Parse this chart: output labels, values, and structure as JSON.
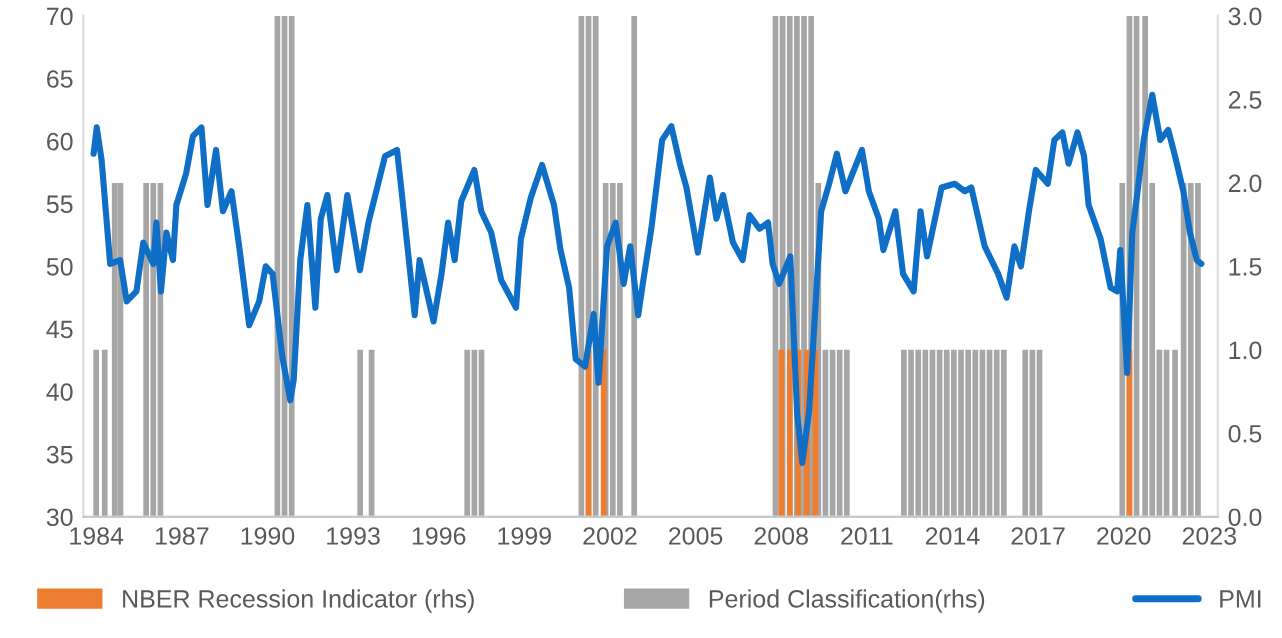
{
  "chart_data": {
    "type": "line",
    "xlim": [
      1983.55,
      2023.3
    ],
    "xticks": [
      1984,
      1987,
      1990,
      1993,
      1996,
      1999,
      2002,
      2005,
      2008,
      2011,
      2014,
      2017,
      2020,
      2023
    ],
    "ylim": [
      30,
      70
    ],
    "yticks": [
      30,
      35,
      40,
      45,
      50,
      55,
      60,
      65,
      70
    ],
    "y2lim": [
      0,
      3
    ],
    "y2ticks": [
      {
        "value": 0,
        "label": "0.0"
      },
      {
        "value": 0.5,
        "label": "0.5"
      },
      {
        "value": 1,
        "label": "1.0"
      },
      {
        "value": 1.5,
        "label": "1.5"
      },
      {
        "value": 2,
        "label": "2.0"
      },
      {
        "value": 2.5,
        "label": "2.5"
      },
      {
        "value": 3,
        "label": "3.0"
      }
    ],
    "legend": "bottom",
    "series": [
      {
        "name": "Period Classification(rhs)",
        "type": "bar",
        "axis": "y2",
        "color": "#a6a6a6",
        "x": [
          1984.0,
          1984.3,
          1984.65,
          1984.85,
          1985.75,
          1986.0,
          1986.25,
          1990.35,
          1990.6,
          1990.85,
          1993.25,
          1993.65,
          1997.0,
          1997.25,
          1997.5,
          2001.0,
          2001.25,
          2001.5,
          2001.85,
          2002.1,
          2002.35,
          2002.85,
          2007.8,
          2008.05,
          2008.3,
          2008.55,
          2008.8,
          2009.05,
          2009.3,
          2009.55,
          2009.8,
          2010.05,
          2010.3,
          2012.3,
          2012.55,
          2012.8,
          2013.05,
          2013.3,
          2013.55,
          2013.8,
          2014.05,
          2014.3,
          2014.55,
          2014.8,
          2015.05,
          2015.3,
          2015.55,
          2015.8,
          2016.55,
          2016.8,
          2017.05,
          2019.95,
          2020.2,
          2020.45,
          2020.75,
          2021.0,
          2021.25,
          2021.5,
          2021.8,
          2022.1,
          2022.35,
          2022.6
        ],
        "values": [
          1,
          1,
          2,
          2,
          2,
          2,
          2,
          3,
          3,
          3,
          1,
          1,
          1,
          1,
          1,
          3,
          3,
          3,
          2,
          2,
          2,
          3,
          3,
          3,
          3,
          3,
          3,
          3,
          2,
          1,
          1,
          1,
          1,
          1,
          1,
          1,
          1,
          1,
          1,
          1,
          1,
          1,
          1,
          1,
          1,
          1,
          1,
          1,
          1,
          1,
          1,
          2,
          3,
          3,
          3,
          2,
          1,
          1,
          1,
          2,
          2,
          2
        ]
      },
      {
        "name": "NBER Recession Indicator (rhs)",
        "type": "bar",
        "axis": "y2",
        "color": "#ed7d31",
        "x": [
          2001.25,
          2001.78,
          2008.0,
          2008.3,
          2008.6,
          2008.9,
          2009.2,
          2020.2
        ],
        "values": [
          1,
          1,
          1,
          1,
          1,
          1,
          1,
          1
        ]
      },
      {
        "name": "PMI",
        "axis": "y",
        "color": "#0f6fc6",
        "x": [
          1983.91,
          1984.02,
          1984.19,
          1984.49,
          1984.84,
          1985.07,
          1985.41,
          1985.65,
          1986.0,
          1986.11,
          1986.27,
          1986.46,
          1986.69,
          1986.81,
          1987.15,
          1987.39,
          1987.69,
          1987.9,
          1988.2,
          1988.44,
          1988.74,
          1989.01,
          1989.36,
          1989.71,
          1989.94,
          1990.18,
          1990.52,
          1990.8,
          1990.92,
          1991.15,
          1991.4,
          1991.68,
          1991.87,
          1992.1,
          1992.43,
          1992.8,
          1993.24,
          1993.54,
          1994.12,
          1994.54,
          1994.7,
          1995.16,
          1995.33,
          1995.82,
          1996.1,
          1996.33,
          1996.56,
          1996.79,
          1997.25,
          1997.49,
          1997.84,
          1998.19,
          1998.71,
          1998.88,
          1999.23,
          1999.62,
          2000.04,
          2000.27,
          2000.57,
          2000.8,
          2001.13,
          2001.43,
          2001.6,
          2001.9,
          2002.2,
          2002.48,
          2002.71,
          2002.99,
          2003.17,
          2003.45,
          2003.83,
          2004.15,
          2004.45,
          2004.68,
          2005.08,
          2005.5,
          2005.73,
          2005.96,
          2006.31,
          2006.65,
          2006.89,
          2007.24,
          2007.54,
          2007.7,
          2007.93,
          2008.32,
          2008.56,
          2008.74,
          2008.98,
          2009.4,
          2009.68,
          2009.95,
          2010.25,
          2010.83,
          2011.07,
          2011.42,
          2011.58,
          2012.0,
          2012.27,
          2012.64,
          2012.88,
          2013.11,
          2013.62,
          2014.08,
          2014.43,
          2014.66,
          2015.13,
          2015.6,
          2015.9,
          2016.17,
          2016.4,
          2016.68,
          2016.92,
          2017.34,
          2017.57,
          2017.85,
          2018.07,
          2018.38,
          2018.61,
          2018.77,
          2019.19,
          2019.54,
          2019.77,
          2019.88,
          2020.12,
          2020.3,
          2020.47,
          2020.7,
          2021.0,
          2021.28,
          2021.56,
          2021.8,
          2022.09,
          2022.32,
          2022.56,
          2022.72
        ],
        "values": [
          59.0,
          61.1,
          58.5,
          50.2,
          50.5,
          47.2,
          48.0,
          51.9,
          50.2,
          53.5,
          48.0,
          52.7,
          50.5,
          54.9,
          57.4,
          60.4,
          61.1,
          54.9,
          59.3,
          54.4,
          56.0,
          51.6,
          45.3,
          47.2,
          50.0,
          49.4,
          42.8,
          39.3,
          40.9,
          50.5,
          54.9,
          46.7,
          53.8,
          55.7,
          49.7,
          55.7,
          49.7,
          53.5,
          58.8,
          59.3,
          56.0,
          46.1,
          50.5,
          45.6,
          49.4,
          53.5,
          50.5,
          55.2,
          57.7,
          54.4,
          52.7,
          48.9,
          46.7,
          52.2,
          55.5,
          58.1,
          54.9,
          51.3,
          48.3,
          42.6,
          42.0,
          46.2,
          40.7,
          51.6,
          53.5,
          48.6,
          51.6,
          46.1,
          48.9,
          53.0,
          60.1,
          61.2,
          58.2,
          56.3,
          51.1,
          57.1,
          53.8,
          55.7,
          51.9,
          50.5,
          54.1,
          53.0,
          53.5,
          50.2,
          48.6,
          50.8,
          38.2,
          34.3,
          38.5,
          54.4,
          56.6,
          59.0,
          56.0,
          59.3,
          56.0,
          53.8,
          51.3,
          54.4,
          49.4,
          48.0,
          54.4,
          50.8,
          56.3,
          56.6,
          56.0,
          56.3,
          51.6,
          49.4,
          47.5,
          51.6,
          50.0,
          54.4,
          57.7,
          56.6,
          60.1,
          60.7,
          58.2,
          60.7,
          58.8,
          54.9,
          52.2,
          48.3,
          48.0,
          51.3,
          41.5,
          52.7,
          55.7,
          60.1,
          63.7,
          60.1,
          60.9,
          58.8,
          56.0,
          52.7,
          50.5,
          50.2
        ]
      }
    ]
  }
}
